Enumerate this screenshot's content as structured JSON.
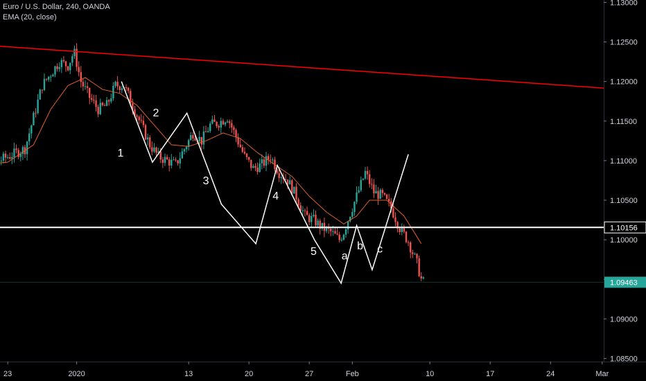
{
  "legend": {
    "symbol_line": "Euro / U.S. Dollar, 240, OANDA",
    "indicator_line": "EMA (20, close)"
  },
  "colors": {
    "background": "#000000",
    "up_candle": "#26a69a",
    "down_candle": "#ef5350",
    "ema": "#e0602a",
    "trendline": "#ff0000",
    "wave_lines": "#ffffff",
    "current_price_tag": "#26a69a",
    "axis_text": "#d1d4dc"
  },
  "chart_data": {
    "type": "candlestick",
    "symbol": "EURUSD",
    "timeframe": "240",
    "ylim": [
      1.0846,
      1.1303
    ],
    "y_ticks": [
      1.085,
      1.09,
      1.095,
      1.1,
      1.105,
      1.11,
      1.115,
      1.12,
      1.125,
      1.13
    ],
    "y_tick_labels": [
      "1.08500",
      "1.09000",
      "1.09500",
      "1.10000",
      "1.10500",
      "1.11000",
      "1.11500",
      "1.12000",
      "1.12500",
      "1.13000"
    ],
    "x_tick_labels": [
      "23",
      "2020",
      "13",
      "20",
      "27",
      "Feb",
      "10",
      "17",
      "24",
      "Mar"
    ],
    "x_tick_days": [
      -9,
      -1,
      12,
      19,
      26,
      31,
      40,
      47,
      54,
      60
    ],
    "price_line": {
      "value": 1.10156,
      "label": "1.10156"
    },
    "current_price": {
      "value": 1.09463,
      "label": "1.09463"
    },
    "trendline": {
      "from": [
        -14.5,
        1.1248
      ],
      "to": [
        73,
        1.1182
      ]
    },
    "close_path": [
      [
        -14.5,
        1.1115
      ],
      [
        -13.5,
        1.1075
      ],
      [
        -12.5,
        1.108
      ],
      [
        -11,
        1.1095
      ],
      [
        -9,
        1.1105
      ],
      [
        -7,
        1.1115
      ],
      [
        -6,
        1.1155
      ],
      [
        -5,
        1.1195
      ],
      [
        -4,
        1.121
      ],
      [
        -3,
        1.1225
      ],
      [
        -2,
        1.122
      ],
      [
        -1.3,
        1.1238
      ],
      [
        -0.5,
        1.12
      ],
      [
        0.5,
        1.118
      ],
      [
        1.5,
        1.1165
      ],
      [
        2.5,
        1.117
      ],
      [
        3.5,
        1.1195
      ],
      [
        4.5,
        1.1195
      ],
      [
        5.5,
        1.117
      ],
      [
        6.5,
        1.1145
      ],
      [
        7.5,
        1.112
      ],
      [
        8.5,
        1.1105
      ],
      [
        9.5,
        1.11
      ],
      [
        10.5,
        1.1095
      ],
      [
        11.5,
        1.1115
      ],
      [
        12.5,
        1.1135
      ],
      [
        13.5,
        1.1125
      ],
      [
        14.5,
        1.1145
      ],
      [
        15.5,
        1.1148
      ],
      [
        16.5,
        1.1155
      ],
      [
        17.5,
        1.113
      ],
      [
        18.5,
        1.1105
      ],
      [
        19.5,
        1.109
      ],
      [
        20.5,
        1.1095
      ],
      [
        21.5,
        1.1105
      ],
      [
        22.5,
        1.1085
      ],
      [
        23.5,
        1.1075
      ],
      [
        24.5,
        1.1055
      ],
      [
        25.5,
        1.103
      ],
      [
        26.5,
        1.1025
      ],
      [
        27.5,
        1.1015
      ],
      [
        28.5,
        1.101
      ],
      [
        29.5,
        1.1
      ],
      [
        30,
        1.101
      ],
      [
        30.8,
        1.1035
      ],
      [
        31.5,
        1.1055
      ],
      [
        32.5,
        1.1085
      ],
      [
        33.5,
        1.106
      ],
      [
        34.5,
        1.1055
      ],
      [
        35.5,
        1.104
      ],
      [
        36.5,
        1.1015
      ],
      [
        37.5,
        1.0998
      ],
      [
        38.5,
        1.097
      ],
      [
        39,
        1.095
      ],
      [
        39.3,
        1.0946
      ]
    ],
    "ema_path": [
      [
        -14.5,
        1.1105
      ],
      [
        -12,
        1.1095
      ],
      [
        -9,
        1.1098
      ],
      [
        -6,
        1.112
      ],
      [
        -4,
        1.1165
      ],
      [
        -2,
        1.1195
      ],
      [
        0,
        1.1205
      ],
      [
        2,
        1.119
      ],
      [
        4,
        1.1185
      ],
      [
        6,
        1.117
      ],
      [
        8,
        1.1145
      ],
      [
        10,
        1.112
      ],
      [
        12,
        1.1118
      ],
      [
        14,
        1.1125
      ],
      [
        16,
        1.1135
      ],
      [
        18,
        1.1128
      ],
      [
        20,
        1.111
      ],
      [
        22,
        1.1095
      ],
      [
        24,
        1.108
      ],
      [
        26,
        1.1055
      ],
      [
        28,
        1.1035
      ],
      [
        30,
        1.102
      ],
      [
        31.5,
        1.103
      ],
      [
        33,
        1.105
      ],
      [
        35,
        1.105
      ],
      [
        37,
        1.103
      ],
      [
        39,
        1.0995
      ]
    ],
    "wave_path": [
      [
        4.2,
        1.12
      ],
      [
        7.8,
        1.1098
      ],
      [
        11.8,
        1.116
      ],
      [
        15.8,
        1.1045
      ],
      [
        19.8,
        1.0995
      ],
      [
        22.3,
        1.1094
      ],
      [
        26.6,
        1.1
      ],
      [
        29.7,
        1.0945
      ],
      [
        31.5,
        1.1018
      ],
      [
        33.3,
        1.0962
      ],
      [
        37.5,
        1.1108
      ]
    ],
    "wave_labels": [
      {
        "text": "1",
        "x": 4.1,
        "y": 1.1105
      },
      {
        "text": "2",
        "x": 8.2,
        "y": 1.1156
      },
      {
        "text": "3",
        "x": 14.0,
        "y": 1.107
      },
      {
        "text": "4",
        "x": 22.1,
        "y": 1.1051
      },
      {
        "text": "5",
        "x": 26.5,
        "y": 1.0981
      },
      {
        "text": "a",
        "x": 30.1,
        "y": 1.0975
      },
      {
        "text": "b",
        "x": 31.9,
        "y": 1.0988
      },
      {
        "text": "c",
        "x": 34.2,
        "y": 1.0984
      }
    ]
  }
}
